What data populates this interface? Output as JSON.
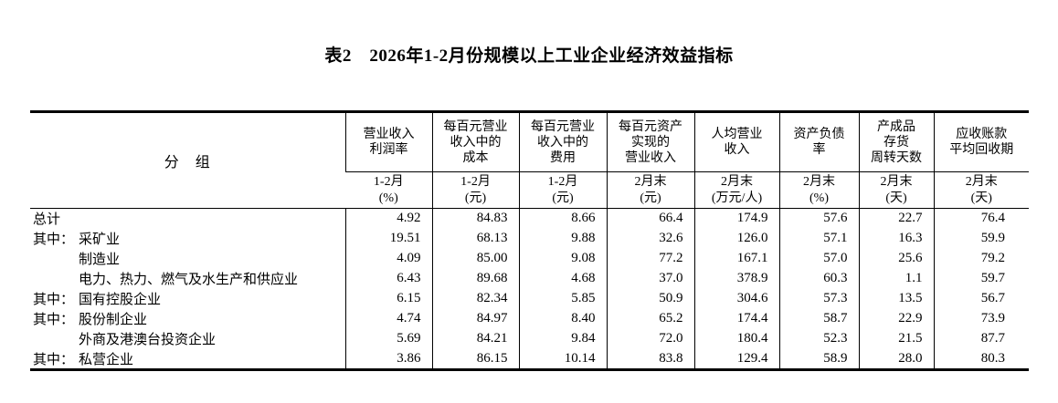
{
  "page": {
    "background_color": "#ffffff",
    "text_color": "#000000",
    "grid_line_color": "#000000"
  },
  "title": "表2　2026年1-2月份规模以上工业企业经济效益指标",
  "table": {
    "group_header": "分　组",
    "columns": [
      {
        "name": "营业收入\n利润率",
        "period": "1-2月\n(%)"
      },
      {
        "name": "每百元营业\n收入中的\n成本",
        "period": "1-2月\n(元)"
      },
      {
        "name": "每百元营业\n收入中的\n费用",
        "period": "1-2月\n(元)"
      },
      {
        "name": "每百元资产\n实现的\n营业收入",
        "period": "2月末\n(元)"
      },
      {
        "name": "人均营业\n收入",
        "period": "2月末\n(万元/人)"
      },
      {
        "name": "资产负债\n率",
        "period": "2月末\n(%)"
      },
      {
        "name": "产成品\n存货\n周转天数",
        "period": "2月末\n(天)"
      },
      {
        "name": "应收账款\n平均回收期",
        "period": "2月末\n(天)"
      }
    ],
    "rows": [
      {
        "prefix": "",
        "indent": false,
        "name": "总计",
        "values": [
          "4.92",
          "84.83",
          "8.66",
          "66.4",
          "174.9",
          "57.6",
          "22.7",
          "76.4"
        ]
      },
      {
        "prefix": "其中：",
        "indent": false,
        "name": "采矿业",
        "values": [
          "19.51",
          "68.13",
          "9.88",
          "32.6",
          "126.0",
          "57.1",
          "16.3",
          "59.9"
        ]
      },
      {
        "prefix": "",
        "indent": true,
        "name": "制造业",
        "values": [
          "4.09",
          "85.00",
          "9.08",
          "77.2",
          "167.1",
          "57.0",
          "25.6",
          "79.2"
        ]
      },
      {
        "prefix": "",
        "indent": true,
        "name": "电力、热力、燃气及水生产和供应业",
        "values": [
          "6.43",
          "89.68",
          "4.68",
          "37.0",
          "378.9",
          "60.3",
          "1.1",
          "59.7"
        ]
      },
      {
        "prefix": "其中：",
        "indent": false,
        "name": "国有控股企业",
        "values": [
          "6.15",
          "82.34",
          "5.85",
          "50.9",
          "304.6",
          "57.3",
          "13.5",
          "56.7"
        ]
      },
      {
        "prefix": "其中：",
        "indent": false,
        "name": "股份制企业",
        "values": [
          "4.74",
          "84.97",
          "8.40",
          "65.2",
          "174.4",
          "58.7",
          "22.9",
          "73.9"
        ]
      },
      {
        "prefix": "",
        "indent": true,
        "name": "外商及港澳台投资企业",
        "values": [
          "5.69",
          "84.21",
          "9.84",
          "72.0",
          "180.4",
          "52.3",
          "21.5",
          "87.7"
        ]
      },
      {
        "prefix": "其中：",
        "indent": false,
        "name": "私营企业",
        "values": [
          "3.86",
          "86.15",
          "10.14",
          "83.8",
          "129.4",
          "58.9",
          "28.0",
          "80.3"
        ]
      }
    ]
  },
  "chart_data": {
    "type": "table",
    "title": "表2　2026年1-2月份规模以上工业企业经济效益指标",
    "columns": [
      "分组",
      "营业收入利润率 1-2月(%)",
      "每百元营业收入中的成本 1-2月(元)",
      "每百元营业收入中的费用 1-2月(元)",
      "每百元资产实现的营业收入 2月末(元)",
      "人均营业收入 2月末(万元/人)",
      "资产负债率 2月末(%)",
      "产成品存货周转天数 2月末(天)",
      "应收账款平均回收期 2月末(天)"
    ],
    "rows": [
      [
        "总计",
        4.92,
        84.83,
        8.66,
        66.4,
        174.9,
        57.6,
        22.7,
        76.4
      ],
      [
        "其中：采矿业",
        19.51,
        68.13,
        9.88,
        32.6,
        126.0,
        57.1,
        16.3,
        59.9
      ],
      [
        "制造业",
        4.09,
        85.0,
        9.08,
        77.2,
        167.1,
        57.0,
        25.6,
        79.2
      ],
      [
        "电力、热力、燃气及水生产和供应业",
        6.43,
        89.68,
        4.68,
        37.0,
        378.9,
        60.3,
        1.1,
        59.7
      ],
      [
        "其中：国有控股企业",
        6.15,
        82.34,
        5.85,
        50.9,
        304.6,
        57.3,
        13.5,
        56.7
      ],
      [
        "其中：股份制企业",
        4.74,
        84.97,
        8.4,
        65.2,
        174.4,
        58.7,
        22.9,
        73.9
      ],
      [
        "外商及港澳台投资企业",
        5.69,
        84.21,
        9.84,
        72.0,
        180.4,
        52.3,
        21.5,
        87.7
      ],
      [
        "其中：私营企业",
        3.86,
        86.15,
        10.14,
        83.8,
        129.4,
        58.9,
        28.0,
        80.3
      ]
    ]
  }
}
